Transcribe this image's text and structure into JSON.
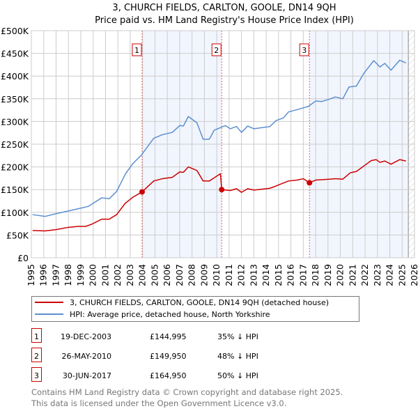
{
  "chart_data": {
    "type": "line",
    "title": "3, CHURCH FIELDS, CARLTON, GOOLE, DN14 9QH",
    "subtitle": "Price paid vs. HM Land Registry's House Price Index (HPI)",
    "xlim": [
      1995,
      2026
    ],
    "ylim": [
      0,
      500000
    ],
    "grid": true,
    "y_ticks": [
      0,
      50000,
      100000,
      150000,
      200000,
      250000,
      300000,
      350000,
      400000,
      450000,
      500000
    ],
    "y_tick_labels": [
      "£0",
      "£50K",
      "£100K",
      "£150K",
      "£200K",
      "£250K",
      "£300K",
      "£350K",
      "£400K",
      "£450K",
      "£500K"
    ],
    "x_tick_labels": [
      "1995",
      "1996",
      "1997",
      "1998",
      "1999",
      "2000",
      "2001",
      "2002",
      "2003",
      "2004",
      "2005",
      "2006",
      "2007",
      "2008",
      "2009",
      "2010",
      "2011",
      "2012",
      "2013",
      "2014",
      "2015",
      "2016",
      "2017",
      "2018",
      "2019",
      "2020",
      "2021",
      "2022",
      "2023",
      "2024",
      "2025",
      "2026"
    ],
    "shaded_periods": [
      [
        2003.96,
        2010.4
      ],
      [
        2017.5,
        2025.5
      ]
    ],
    "forecast_hatch_from": 2025.5,
    "legend_position": "below",
    "series": [
      {
        "name": "3, CHURCH FIELDS, CARLTON, GOOLE, DN14 9QH (detached house)",
        "color": "#cc0000",
        "points": [
          [
            1995.1,
            60
          ],
          [
            1996.1,
            59
          ],
          [
            1997,
            62
          ],
          [
            1998,
            67
          ],
          [
            1998.8,
            69
          ],
          [
            1999.4,
            69
          ],
          [
            1999.9,
            74
          ],
          [
            2000.7,
            85
          ],
          [
            2001.3,
            85
          ],
          [
            2001.9,
            95
          ],
          [
            2002.6,
            120
          ],
          [
            2003.2,
            133
          ],
          [
            2003.96,
            145
          ],
          [
            2004.9,
            169
          ],
          [
            2005.6,
            174
          ],
          [
            2006.4,
            177
          ],
          [
            2007,
            189
          ],
          [
            2007.3,
            188
          ],
          [
            2007.7,
            200
          ],
          [
            2008.4,
            192
          ],
          [
            2008.9,
            169
          ],
          [
            2009.4,
            169
          ],
          [
            2010.3,
            185
          ],
          [
            2010.4,
            150
          ],
          [
            2011.1,
            148
          ],
          [
            2011.6,
            152
          ],
          [
            2012,
            144
          ],
          [
            2012.5,
            152
          ],
          [
            2013,
            149
          ],
          [
            2014.3,
            153
          ],
          [
            2014.8,
            158
          ],
          [
            2015.8,
            169
          ],
          [
            2016.5,
            171
          ],
          [
            2017,
            174
          ],
          [
            2017.5,
            165
          ],
          [
            2018,
            171
          ],
          [
            2019.1,
            173
          ],
          [
            2019.6,
            174
          ],
          [
            2020.2,
            173
          ],
          [
            2020.8,
            187
          ],
          [
            2021.3,
            190
          ],
          [
            2021.9,
            202
          ],
          [
            2022.5,
            214
          ],
          [
            2022.9,
            216
          ],
          [
            2023.2,
            210
          ],
          [
            2023.6,
            213
          ],
          [
            2024.1,
            206
          ],
          [
            2024.8,
            216
          ],
          [
            2025.3,
            213
          ]
        ],
        "unit": "£K"
      },
      {
        "name": "HPI: Average price, detached house, North Yorkshire",
        "color": "#5b8fd0",
        "points": [
          [
            1995.1,
            95
          ],
          [
            1996.1,
            91
          ],
          [
            1997,
            97
          ],
          [
            1998,
            103
          ],
          [
            1998.8,
            108
          ],
          [
            1999.6,
            113
          ],
          [
            2000.7,
            132
          ],
          [
            2001.3,
            130
          ],
          [
            2001.9,
            146
          ],
          [
            2002.6,
            184
          ],
          [
            2003.2,
            207
          ],
          [
            2003.9,
            226
          ],
          [
            2004.9,
            263
          ],
          [
            2005.6,
            271
          ],
          [
            2006.4,
            276
          ],
          [
            2007,
            291
          ],
          [
            2007.3,
            290
          ],
          [
            2007.7,
            311
          ],
          [
            2008.4,
            297
          ],
          [
            2008.9,
            261
          ],
          [
            2009.4,
            261
          ],
          [
            2009.8,
            281
          ],
          [
            2010.7,
            291
          ],
          [
            2011.1,
            284
          ],
          [
            2011.6,
            289
          ],
          [
            2012,
            276
          ],
          [
            2012.5,
            290
          ],
          [
            2013,
            284
          ],
          [
            2014.3,
            289
          ],
          [
            2014.8,
            302
          ],
          [
            2015.4,
            308
          ],
          [
            2015.8,
            321
          ],
          [
            2016.5,
            326
          ],
          [
            2017,
            330
          ],
          [
            2017.4,
            333
          ],
          [
            2018,
            345
          ],
          [
            2018.5,
            344
          ],
          [
            2019.1,
            349
          ],
          [
            2019.6,
            354
          ],
          [
            2020.2,
            350
          ],
          [
            2020.7,
            376
          ],
          [
            2021.3,
            378
          ],
          [
            2021.9,
            406
          ],
          [
            2022.5,
            427
          ],
          [
            2022.7,
            434
          ],
          [
            2023.2,
            420
          ],
          [
            2023.6,
            428
          ],
          [
            2024.1,
            413
          ],
          [
            2024.8,
            435
          ],
          [
            2025.3,
            429
          ]
        ],
        "unit": "£K"
      }
    ],
    "sales": [
      {
        "label": "1",
        "x": 2003.96,
        "y": 145,
        "date": "19-DEC-2003",
        "price": "£144,995",
        "hpi": "35% ↓ HPI"
      },
      {
        "label": "2",
        "x": 2010.4,
        "y": 150,
        "date": "26-MAY-2010",
        "price": "£149,950",
        "hpi": "48% ↓ HPI"
      },
      {
        "label": "3",
        "x": 2017.5,
        "y": 165,
        "date": "30-JUN-2017",
        "price": "£164,950",
        "hpi": "50% ↓ HPI"
      }
    ]
  },
  "footer": {
    "line1": "Contains HM Land Registry data © Crown copyright and database right 2025.",
    "line2": "This data is licensed under the Open Government Licence v3.0."
  }
}
